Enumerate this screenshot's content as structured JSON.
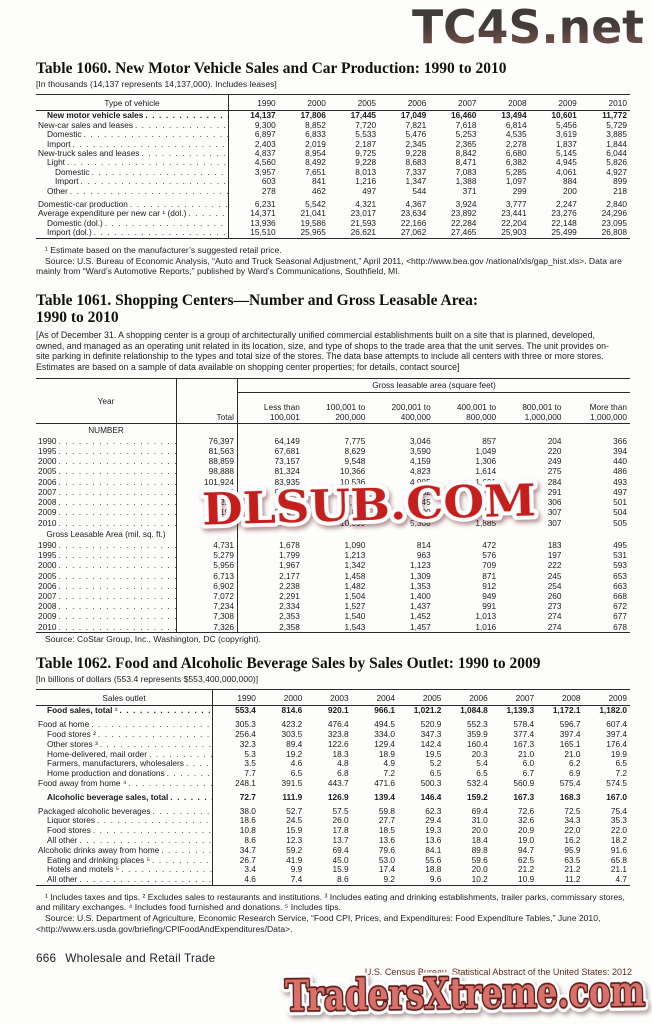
{
  "watermarks": {
    "top": "TC4S.net",
    "middle": "DLSUB.COM",
    "bottom": "TradersXtreme.com"
  },
  "colors": {
    "tc4s_top": "#3d3d3d",
    "tc4s_mid": "#463c3a",
    "tc4s_bottom": "#8c5a52",
    "dlsub_red": "#c41f1c",
    "traders_fill": "#d9706a",
    "traders_outline": "#5c211d",
    "rule_dark": "#2a2a2a"
  },
  "table1060": {
    "title": "Table 1060. New Motor Vehicle Sales and Car Production: 1990 to 2010",
    "note": "[In thousands (14,137 represents 14,137,000). Includes leases]",
    "stub_header": "Type of vehicle",
    "columns": [
      "1990",
      "2000",
      "2005",
      "2006",
      "2007",
      "2008",
      "2009",
      "2010"
    ],
    "rows": [
      {
        "label": "New motor vehicle sales",
        "indent": 1,
        "bold": true,
        "values": [
          "14,137",
          "17,806",
          "17,445",
          "17,049",
          "16,460",
          "13,494",
          "10,601",
          "11,772"
        ]
      },
      {
        "label": "New-car sales and leases",
        "indent": 0,
        "values": [
          "9,300",
          "8,852",
          "7,720",
          "7,821",
          "7,618",
          "6,814",
          "5,456",
          "5,729"
        ]
      },
      {
        "label": "Domestic",
        "indent": 1,
        "values": [
          "6,897",
          "6,833",
          "5,533",
          "5,476",
          "5,253",
          "4,535",
          "3,619",
          "3,885"
        ]
      },
      {
        "label": "Import",
        "indent": 1,
        "values": [
          "2,403",
          "2,019",
          "2,187",
          "2,345",
          "2,365",
          "2,278",
          "1,837",
          "1,844"
        ]
      },
      {
        "label": "New-truck sales and leases",
        "indent": 0,
        "values": [
          "4,837",
          "8,954",
          "9,725",
          "9,228",
          "8,842",
          "6,680",
          "5,145",
          "6,044"
        ]
      },
      {
        "label": "Light",
        "indent": 1,
        "values": [
          "4,560",
          "8,492",
          "9,228",
          "8,683",
          "8,471",
          "6,382",
          "4,945",
          "5,826"
        ]
      },
      {
        "label": "Domestic",
        "indent": 2,
        "values": [
          "3,957",
          "7,651",
          "8,013",
          "7,337",
          "7,083",
          "5,285",
          "4,061",
          "4,927"
        ]
      },
      {
        "label": "Import",
        "indent": 2,
        "values": [
          "603",
          "841",
          "1,216",
          "1,347",
          "1,388",
          "1,097",
          "884",
          "899"
        ]
      },
      {
        "label": "Other",
        "indent": 1,
        "values": [
          "278",
          "462",
          "497",
          "544",
          "371",
          "299",
          "200",
          "218"
        ]
      },
      {
        "label": "Domestic-car production",
        "indent": 0,
        "gap": true,
        "values": [
          "6,231",
          "5,542",
          "4,321",
          "4,367",
          "3,924",
          "3,777",
          "2,247",
          "2,840"
        ]
      },
      {
        "label": "Average expenditure per new car ¹ (dol.)",
        "indent": 0,
        "values": [
          "14,371",
          "21,041",
          "23,017",
          "23,634",
          "23,892",
          "23,441",
          "23,276",
          "24,296"
        ]
      },
      {
        "label": "Domestic (dol.)",
        "indent": 1,
        "values": [
          "13,936",
          "19,586",
          "21,593",
          "22,166",
          "22,284",
          "22,204",
          "22,148",
          "23,095"
        ]
      },
      {
        "label": "Import (dol.)",
        "indent": 1,
        "values": [
          "15,510",
          "25,965",
          "26,621",
          "27,062",
          "27,465",
          "25,903",
          "25,499",
          "26,808"
        ]
      }
    ],
    "footnote": "¹ Estimate based on the manufacturer’s suggested retail price.",
    "source": "Source: U.S. Bureau of Economic Analysis, “Auto and Truck Seasonal Adjustment,” April 2011, <http://www.bea.gov /national/xls/gap_hist.xls>. Data are mainly from “Ward’s Automotive Reports,” published by Ward’s Communications, Southfield, MI."
  },
  "table1061": {
    "title": "Table 1061. Shopping Centers—Number and Gross Leasable Area:",
    "title2": "1990 to 2010",
    "description": "[As of December 31. A shopping center is a group of architecturally unified commercial establishments built on a site that is planned, developed, owned, and managed as an operating unit related in its location, size, and type of shops to the trade area that the unit serves. The unit provides on-site parking in definite relationship to the types and total size of the stores. The data base attempts to include all centers with three or more stores. Estimates are based on a sample of data available on shopping center properties; for details, contact source]",
    "stub_header": "Year",
    "total_header": "Total",
    "group_header": "Gross leasable area (square feet)",
    "columns": [
      "Less than\n100,001",
      "100,001 to\n200,000",
      "200,001 to\n400,000",
      "400,001 to\n800,000",
      "800,001 to\n1,000,000",
      "More than\n1,000,000"
    ],
    "sections": [
      {
        "label": "NUMBER",
        "rows": [
          {
            "label": "1990",
            "values": [
              "76,397",
              "64,149",
              "7,775",
              "3,046",
              "857",
              "204",
              "366"
            ]
          },
          {
            "label": "1995",
            "values": [
              "81,563",
              "67,681",
              "8,629",
              "3,590",
              "1,049",
              "220",
              "394"
            ]
          },
          {
            "label": "2000",
            "values": [
              "88,859",
              "73,157",
              "9,548",
              "4,159",
              "1,306",
              "249",
              "440"
            ]
          },
          {
            "label": "2005",
            "values": [
              "98,888",
              "81,324",
              "10,366",
              "4,823",
              "1,614",
              "275",
              "486"
            ]
          },
          {
            "label": "2006",
            "values": [
              "101,924",
              "83,935",
              "10,536",
              "4,985",
              "1,691",
              "284",
              "493"
            ]
          },
          {
            "label": "2007",
            "values": [
              "104,606",
              "86,214",
              "10,692",
              "5,152",
              "1,760",
              "291",
              "497"
            ]
          },
          {
            "label": "2008",
            "values": [
              "106,219",
              "87,455",
              "10,811",
              "5,245",
              "1,839",
              "306",
              "501"
            ]
          },
          {
            "label": "2009",
            "values": [
              "107,191",
              "88,243",
              "10,871",
              "5,290",
              "1,879",
              "307",
              "504"
            ]
          },
          {
            "label": "2010",
            "values": [
              "107,578",
              "88,596",
              "10,899",
              "5,308",
              "1,885",
              "307",
              "505"
            ]
          }
        ]
      },
      {
        "label": "Gross Leasable Area (mil. sq. ft.)",
        "rows": [
          {
            "label": "1990",
            "values": [
              "4,731",
              "1,678",
              "1,090",
              "814",
              "472",
              "183",
              "495"
            ]
          },
          {
            "label": "1995",
            "values": [
              "5,279",
              "1,799",
              "1,213",
              "963",
              "576",
              "197",
              "531"
            ]
          },
          {
            "label": "2000",
            "values": [
              "5,956",
              "1,967",
              "1,342",
              "1,123",
              "709",
              "222",
              "593"
            ]
          },
          {
            "label": "2005",
            "values": [
              "6,713",
              "2,177",
              "1,458",
              "1,309",
              "871",
              "245",
              "653"
            ]
          },
          {
            "label": "2006",
            "values": [
              "6,902",
              "2,238",
              "1,482",
              "1,353",
              "912",
              "254",
              "663"
            ]
          },
          {
            "label": "2007",
            "values": [
              "7,072",
              "2,291",
              "1,504",
              "1,400",
              "949",
              "260",
              "668"
            ]
          },
          {
            "label": "2008",
            "values": [
              "7,234",
              "2,334",
              "1,527",
              "1,437",
              "991",
              "273",
              "672"
            ]
          },
          {
            "label": "2009",
            "values": [
              "7,308",
              "2,353",
              "1,540",
              "1,452",
              "1,013",
              "274",
              "677"
            ]
          },
          {
            "label": "2010",
            "values": [
              "7,326",
              "2,358",
              "1,543",
              "1,457",
              "1,016",
              "274",
              "678"
            ]
          }
        ]
      }
    ],
    "source": "Source: CoStar Group, Inc., Washington, DC (copyright)."
  },
  "table1062": {
    "title": "Table 1062. Food and Alcoholic Beverage Sales by Sales Outlet: 1990 to 2009",
    "note": "[In billions of dollars (553.4 represents $553,400,000,000)]",
    "stub_header": "Sales outlet",
    "columns": [
      "1990",
      "2000",
      "2003",
      "2004",
      "2005",
      "2006",
      "2007",
      "2008",
      "2009"
    ],
    "rows": [
      {
        "label": "Food sales, total ¹",
        "indent": 1,
        "bold": true,
        "values": [
          "553.4",
          "814.6",
          "920.1",
          "966.1",
          "1,021.2",
          "1,084.8",
          "1,139.3",
          "1,172.1",
          "1,182.0"
        ]
      },
      {
        "label": "Food at home",
        "indent": 0,
        "gap": true,
        "values": [
          "305.3",
          "423.2",
          "476.4",
          "494.5",
          "520.9",
          "552.3",
          "578.4",
          "596.7",
          "607.4"
        ]
      },
      {
        "label": "Food stores ²",
        "indent": 1,
        "values": [
          "256.4",
          "303.5",
          "323.8",
          "334.0",
          "347.3",
          "359.9",
          "377.4",
          "397.4",
          "397.4"
        ]
      },
      {
        "label": "Other stores ³",
        "indent": 1,
        "values": [
          "32.3",
          "89.4",
          "122.6",
          "129.4",
          "142.4",
          "160.4",
          "167.3",
          "165.1",
          "176.4"
        ]
      },
      {
        "label": "Home-delivered, mail order",
        "indent": 1,
        "values": [
          "5.3",
          "19.2",
          "18.3",
          "18.9",
          "19.5",
          "20.3",
          "21.0",
          "21.0",
          "19.9"
        ]
      },
      {
        "label": "Farmers, manufacturers, wholesalers",
        "indent": 1,
        "values": [
          "3.5",
          "4.6",
          "4.8",
          "4.9",
          "5.2",
          "5.4",
          "6.0",
          "6.2",
          "6.5"
        ]
      },
      {
        "label": "Home production and donations",
        "indent": 1,
        "values": [
          "7.7",
          "6.5",
          "6.8",
          "7.2",
          "6.5",
          "6.5",
          "6.7",
          "6.9",
          "7.2"
        ]
      },
      {
        "label": "Food away from home ⁴",
        "indent": 0,
        "values": [
          "248.1",
          "391.5",
          "443.7",
          "471.6",
          "500.3",
          "532.4",
          "560.9",
          "575.4",
          "574.5"
        ]
      },
      {
        "label": "Alcoholic beverage sales, total",
        "indent": 1,
        "bold": true,
        "gap": true,
        "values": [
          "72.7",
          "111.9",
          "126.9",
          "139.4",
          "146.4",
          "159.2",
          "167.3",
          "168.3",
          "167.0"
        ]
      },
      {
        "label": "Packaged alcoholic beverages",
        "indent": 0,
        "gap": true,
        "values": [
          "38.0",
          "52.7",
          "57.5",
          "59.8",
          "62.3",
          "69.4",
          "72.6",
          "72.5",
          "75.4"
        ]
      },
      {
        "label": "Liquor stores",
        "indent": 1,
        "values": [
          "18.6",
          "24.5",
          "26.0",
          "27.7",
          "29.4",
          "31.0",
          "32.6",
          "34.3",
          "35.3"
        ]
      },
      {
        "label": "Food stores",
        "indent": 1,
        "values": [
          "10.8",
          "15.9",
          "17.8",
          "18.5",
          "19.3",
          "20.0",
          "20.9",
          "22.0",
          "22.0"
        ]
      },
      {
        "label": "All other",
        "indent": 1,
        "values": [
          "8.6",
          "12.3",
          "13.7",
          "13.6",
          "13.6",
          "18.4",
          "19.0",
          "16.2",
          "18.2"
        ]
      },
      {
        "label": "Alcoholic drinks away from home",
        "indent": 0,
        "values": [
          "34.7",
          "59.2",
          "69.4",
          "79.6",
          "84.1",
          "89.8",
          "94.7",
          "95.9",
          "91.6"
        ]
      },
      {
        "label": "Eating and drinking places ⁵",
        "indent": 1,
        "values": [
          "26.7",
          "41.9",
          "45.0",
          "53.0",
          "55.6",
          "59.6",
          "62.5",
          "63.5",
          "65.8"
        ]
      },
      {
        "label": "Hotels and motels ⁵",
        "indent": 1,
        "values": [
          "3.4",
          "9.9",
          "15.9",
          "17.4",
          "18.8",
          "20.0",
          "21.2",
          "21.2",
          "21.1"
        ]
      },
      {
        "label": "All other",
        "indent": 1,
        "values": [
          "4.6",
          "7.4",
          "8.6",
          "9.2",
          "9.6",
          "10.2",
          "10.9",
          "11.2",
          "4.7"
        ]
      }
    ],
    "footnotes": "¹ Includes taxes and tips. ² Excludes sales to restaurants and institutions. ³ Includes eating and drinking establishments, trailer parks, commissary stores, and military exchanges. ⁴ Includes food furnished and donations. ⁵ Includes tips.",
    "source": "Source: U.S. Department of Agriculture, Economic Research Service, “Food CPI, Prices, and Expenditures: Food Expenditure Tables,” June 2010, <http://www.ers.usda.gov/briefing/CPIFoodAndExpenditures/Data>."
  },
  "footer": {
    "page_number": "666",
    "section_title": "Wholesale and Retail Trade",
    "credit": "U.S. Census Bureau, Statistical Abstract of the United States: 2012"
  }
}
